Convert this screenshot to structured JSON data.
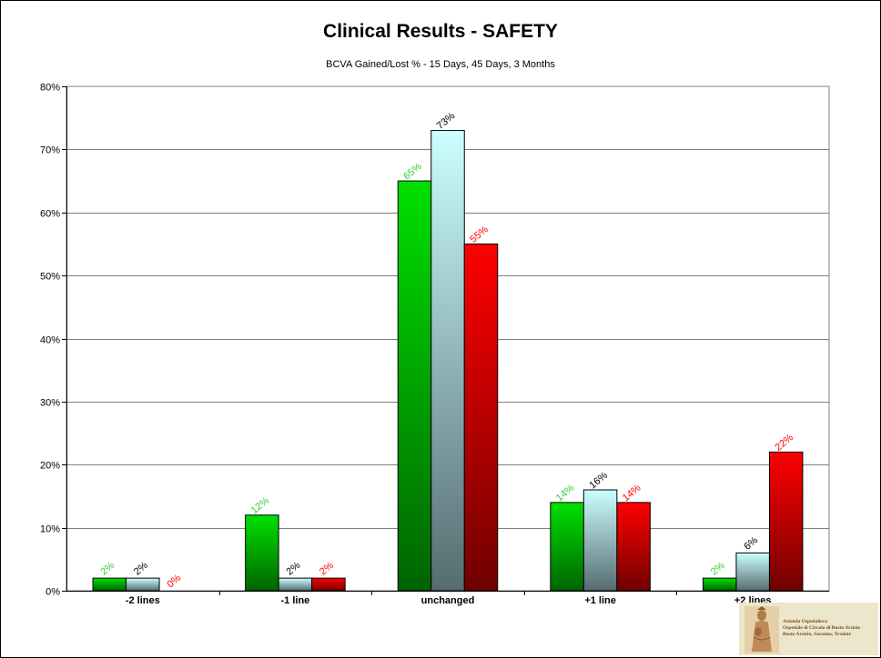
{
  "chart_data": {
    "type": "bar",
    "title": "Clinical Results - SAFETY",
    "subtitle": "BCVA Gained/Lost % - 15 Days, 45 Days, 3 Months",
    "categories": [
      "-2 lines",
      "-1 line",
      "unchanged",
      "+1 line",
      "+2 lines"
    ],
    "series": [
      {
        "values": [
          2,
          12,
          65,
          14,
          2
        ],
        "labels": [
          "2%",
          "12%",
          "65%",
          "14%",
          "2%"
        ],
        "color": "#00e000",
        "gradient_bottom": "#006400",
        "label_color": "#33cc33"
      },
      {
        "values": [
          2,
          2,
          73,
          16,
          6
        ],
        "labels": [
          "2%",
          "2%",
          "73%",
          "16%",
          "6%"
        ],
        "color": "#ccffff",
        "gradient_bottom": "#556b70",
        "label_color": "#000000"
      },
      {
        "values": [
          0,
          2,
          55,
          14,
          22
        ],
        "labels": [
          "0%",
          "2%",
          "55%",
          "14%",
          "22%"
        ],
        "color": "#ff0000",
        "gradient_bottom": "#700000",
        "label_color": "#ff0000"
      }
    ],
    "y_ticks": [
      "0%",
      "10%",
      "20%",
      "30%",
      "40%",
      "50%",
      "60%",
      "70%",
      "80%"
    ],
    "ylim": [
      0,
      80
    ],
    "y_unit": "%",
    "grid": true,
    "legend": "none"
  },
  "logo": {
    "lines": [
      "Azienda Ospedaliera",
      "Ospedale di Circolo di Busto Arsizio",
      "Busto Arsizio, Saronno, Tradate"
    ]
  }
}
